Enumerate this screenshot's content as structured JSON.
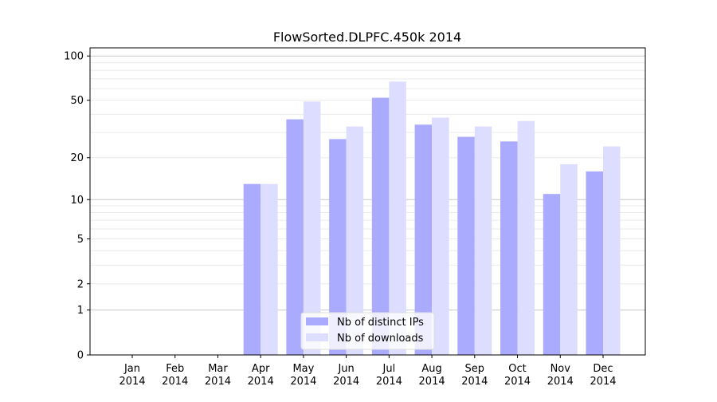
{
  "chart_data": {
    "type": "bar",
    "title": "FlowSorted.DLPFC.450k 2014",
    "xlabel": "",
    "ylabel": "",
    "yscale": "log(1+y)",
    "ylim": [
      0,
      110
    ],
    "yticks": [
      0,
      1,
      2,
      5,
      10,
      20,
      50,
      100
    ],
    "grid": true,
    "legend_position": "bottom-center",
    "categories": [
      "Jan\n2014",
      "Feb\n2014",
      "Mar\n2014",
      "Apr\n2014",
      "May\n2014",
      "Jun\n2014",
      "Jul\n2014",
      "Aug\n2014",
      "Sep\n2014",
      "Oct\n2014",
      "Nov\n2014",
      "Dec\n2014"
    ],
    "series": [
      {
        "name": "Nb of distinct IPs",
        "color": "#aaaaff",
        "values": [
          0,
          0,
          0,
          13,
          37,
          27,
          52,
          34,
          28,
          26,
          11,
          16
        ]
      },
      {
        "name": "Nb of downloads",
        "color": "#ddddff",
        "values": [
          0,
          0,
          0,
          13,
          49,
          33,
          67,
          38,
          33,
          36,
          18,
          24
        ]
      }
    ]
  }
}
